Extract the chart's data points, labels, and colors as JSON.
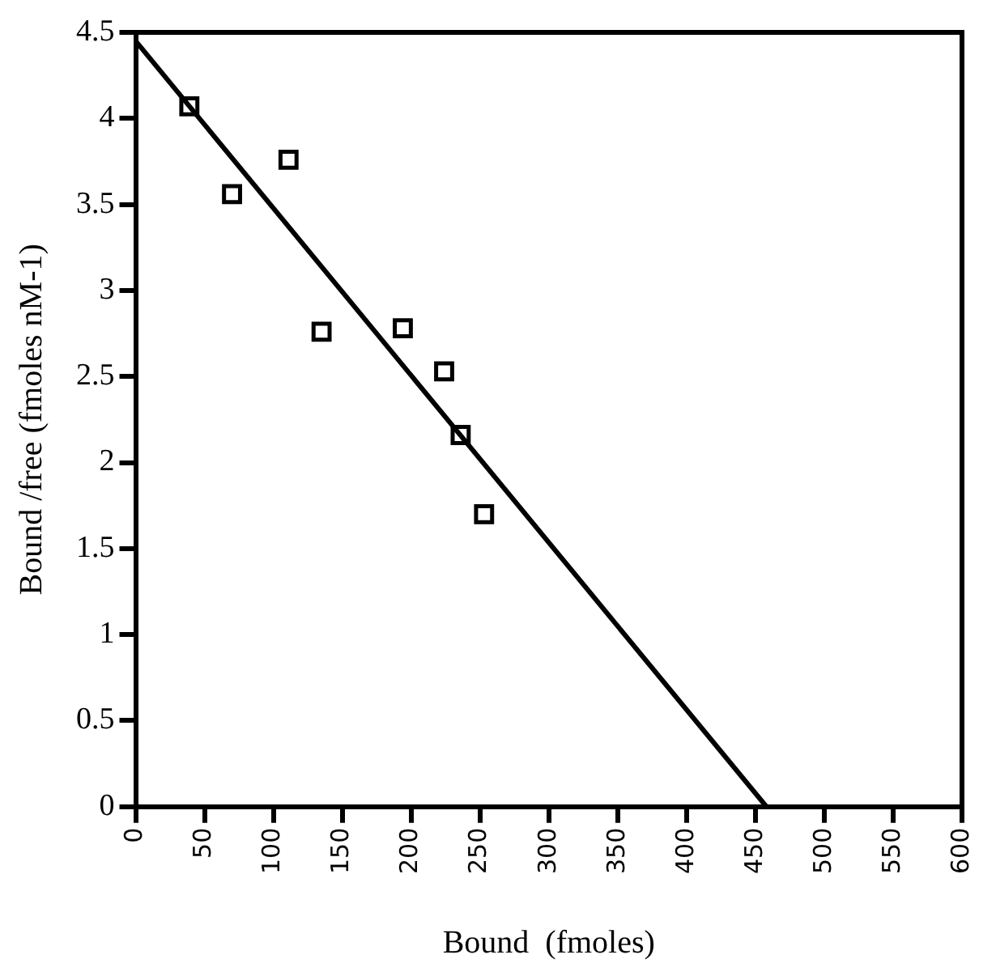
{
  "chart_data": {
    "type": "scatter",
    "xlabel": "Bound  (fmoles)",
    "ylabel": "Bound /free (fmoles nM-1)",
    "series": [
      {
        "x": [
          39,
          70,
          111,
          135,
          194,
          224,
          236,
          253
        ],
        "values": [
          4.07,
          3.56,
          3.76,
          2.76,
          2.78,
          2.53,
          2.16,
          1.7
        ],
        "color": "#000000",
        "marker": "square"
      },
      {
        "type": "line",
        "x": [
          0,
          458
        ],
        "values": [
          4.45,
          0
        ],
        "color": "#000000",
        "marker": "none",
        "line_style": "solid"
      }
    ],
    "xlim": [
      0,
      600
    ],
    "xticks": [
      0,
      50,
      100,
      150,
      200,
      250,
      300,
      350,
      400,
      450,
      500,
      550,
      600
    ],
    "ylim": [
      0,
      4.5
    ],
    "yticks": [
      0,
      0.5,
      1,
      1.5,
      2,
      2.5,
      3,
      3.5,
      4,
      4.5
    ],
    "grid": false,
    "legend": false
  }
}
